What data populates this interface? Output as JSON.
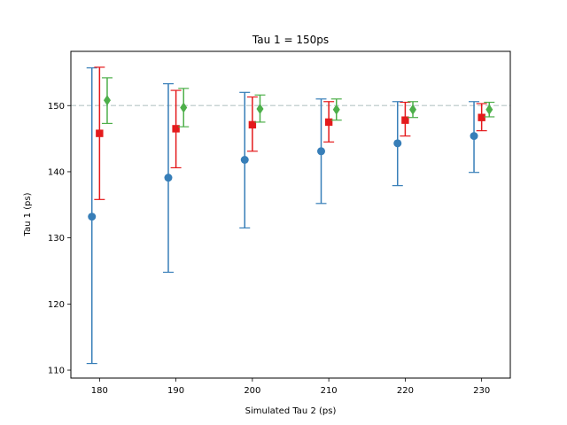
{
  "chart_data": {
    "type": "scatter",
    "title": "Tau 1 = 150ps",
    "xlabel": "Simulated Tau 2 (ps)",
    "ylabel": "Tau 1 (ps)",
    "xlim": [
      176.25,
      233.75
    ],
    "ylim": [
      108.8,
      158.2
    ],
    "xticks": [
      180,
      190,
      200,
      210,
      220,
      230
    ],
    "yticks": [
      110,
      120,
      130,
      140,
      150
    ],
    "grid": false,
    "reference_line": {
      "y": 150,
      "style": "dashed",
      "color": "#c8d4d4"
    },
    "series": [
      {
        "color": "#377eb8",
        "marker": "circle",
        "x_offset": -1,
        "x": [
          180,
          190,
          200,
          210,
          220,
          230
        ],
        "y": [
          133.2,
          139.1,
          141.8,
          143.1,
          144.3,
          145.4
        ],
        "err_low": [
          111.0,
          124.8,
          131.5,
          135.2,
          137.9,
          139.9
        ],
        "err_high": [
          155.7,
          153.3,
          152.0,
          151.0,
          150.6,
          150.6
        ]
      },
      {
        "color": "#e41a1c",
        "marker": "square",
        "x_offset": 0,
        "x": [
          180,
          190,
          200,
          210,
          220,
          230
        ],
        "y": [
          145.8,
          146.5,
          147.1,
          147.5,
          147.8,
          148.2
        ],
        "err_low": [
          135.8,
          140.6,
          143.1,
          144.5,
          145.4,
          146.2
        ],
        "err_high": [
          155.8,
          152.3,
          151.3,
          150.6,
          150.5,
          150.3
        ]
      },
      {
        "color": "#4daf4a",
        "marker": "diamond",
        "x_offset": 1,
        "x": [
          180,
          190,
          200,
          210,
          220,
          230
        ],
        "y": [
          150.8,
          149.7,
          149.5,
          149.4,
          149.4,
          149.4
        ],
        "err_low": [
          147.3,
          146.8,
          147.5,
          147.8,
          148.2,
          148.3
        ],
        "err_high": [
          154.2,
          152.6,
          151.6,
          151.0,
          150.6,
          150.5
        ]
      }
    ]
  }
}
